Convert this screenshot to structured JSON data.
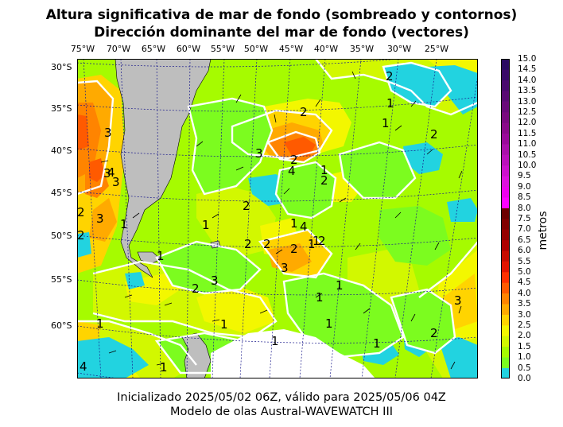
{
  "title": {
    "line1": "Altura significativa de mar de fondo (sombreado y contornos)",
    "line2": "Dirección dominante del mar de fondo (vectores)"
  },
  "footer": {
    "line1": "Inicializado 2025/05/02 06Z, válido para 2025/05/06 04Z",
    "line2": "Modelo de olas Austral-WAVEWATCH III"
  },
  "axes": {
    "longitude_labels": [
      "75°W",
      "70°W",
      "65°W",
      "60°W",
      "55°W",
      "50°W",
      "45°W",
      "40°W",
      "35°W",
      "30°W",
      "25°W"
    ],
    "latitude_labels": [
      "30°S",
      "35°S",
      "40°S",
      "45°S",
      "50°S",
      "55°S",
      "60°S"
    ]
  },
  "colorbar": {
    "label": "metros",
    "ticks": [
      "15.0",
      "14.5",
      "14.0",
      "13.5",
      "13.0",
      "12.5",
      "12.0",
      "11.5",
      "11.0",
      "10.5",
      "10.0",
      "9.5",
      "9.0",
      "8.5",
      "8.0",
      "7.5",
      "7.0",
      "6.5",
      "6.0",
      "5.5",
      "5.0",
      "4.5",
      "4.0",
      "3.5",
      "3.0",
      "2.5",
      "2.0",
      "1.5",
      "1.0",
      "0.5",
      "0.0"
    ],
    "colors": [
      "#22d3e0",
      "#7cfc1f",
      "#a6fb00",
      "#d2f800",
      "#f3f700",
      "#ffd400",
      "#ffaa00",
      "#ff8400",
      "#ff5a00",
      "#ff3000",
      "#e31400",
      "#c70c00",
      "#ad0000",
      "#950000",
      "#800000",
      "#6c0000",
      "#ff00ff",
      "#ee00ee",
      "#dd10dd",
      "#cc10cc",
      "#bb10bb",
      "#aa10aa",
      "#9a0a9a",
      "#8a0a8a",
      "#7a0a80",
      "#6a0a7a",
      "#5a0a74",
      "#4a0a6e",
      "#3a0a68",
      "#2a0a62"
    ]
  },
  "contour_labels": [
    "2",
    "1",
    "1",
    "2",
    "3",
    "2",
    "2",
    "4",
    "1",
    "2",
    "3",
    "3",
    "4",
    "3",
    "1",
    "2",
    "1",
    "2",
    "2",
    "2",
    "3",
    "4",
    "1",
    "1",
    "2",
    "2",
    "2",
    "1",
    "3",
    "2",
    "3",
    "1",
    "1",
    "1",
    "1",
    "1",
    "1",
    "3",
    "2",
    "1",
    "4",
    "1",
    "1"
  ],
  "legend_colors": {
    "land": "#bebebe",
    "ice": "#ffffff",
    "contour": "#ffffff",
    "graticule": "#1a1a8c"
  }
}
